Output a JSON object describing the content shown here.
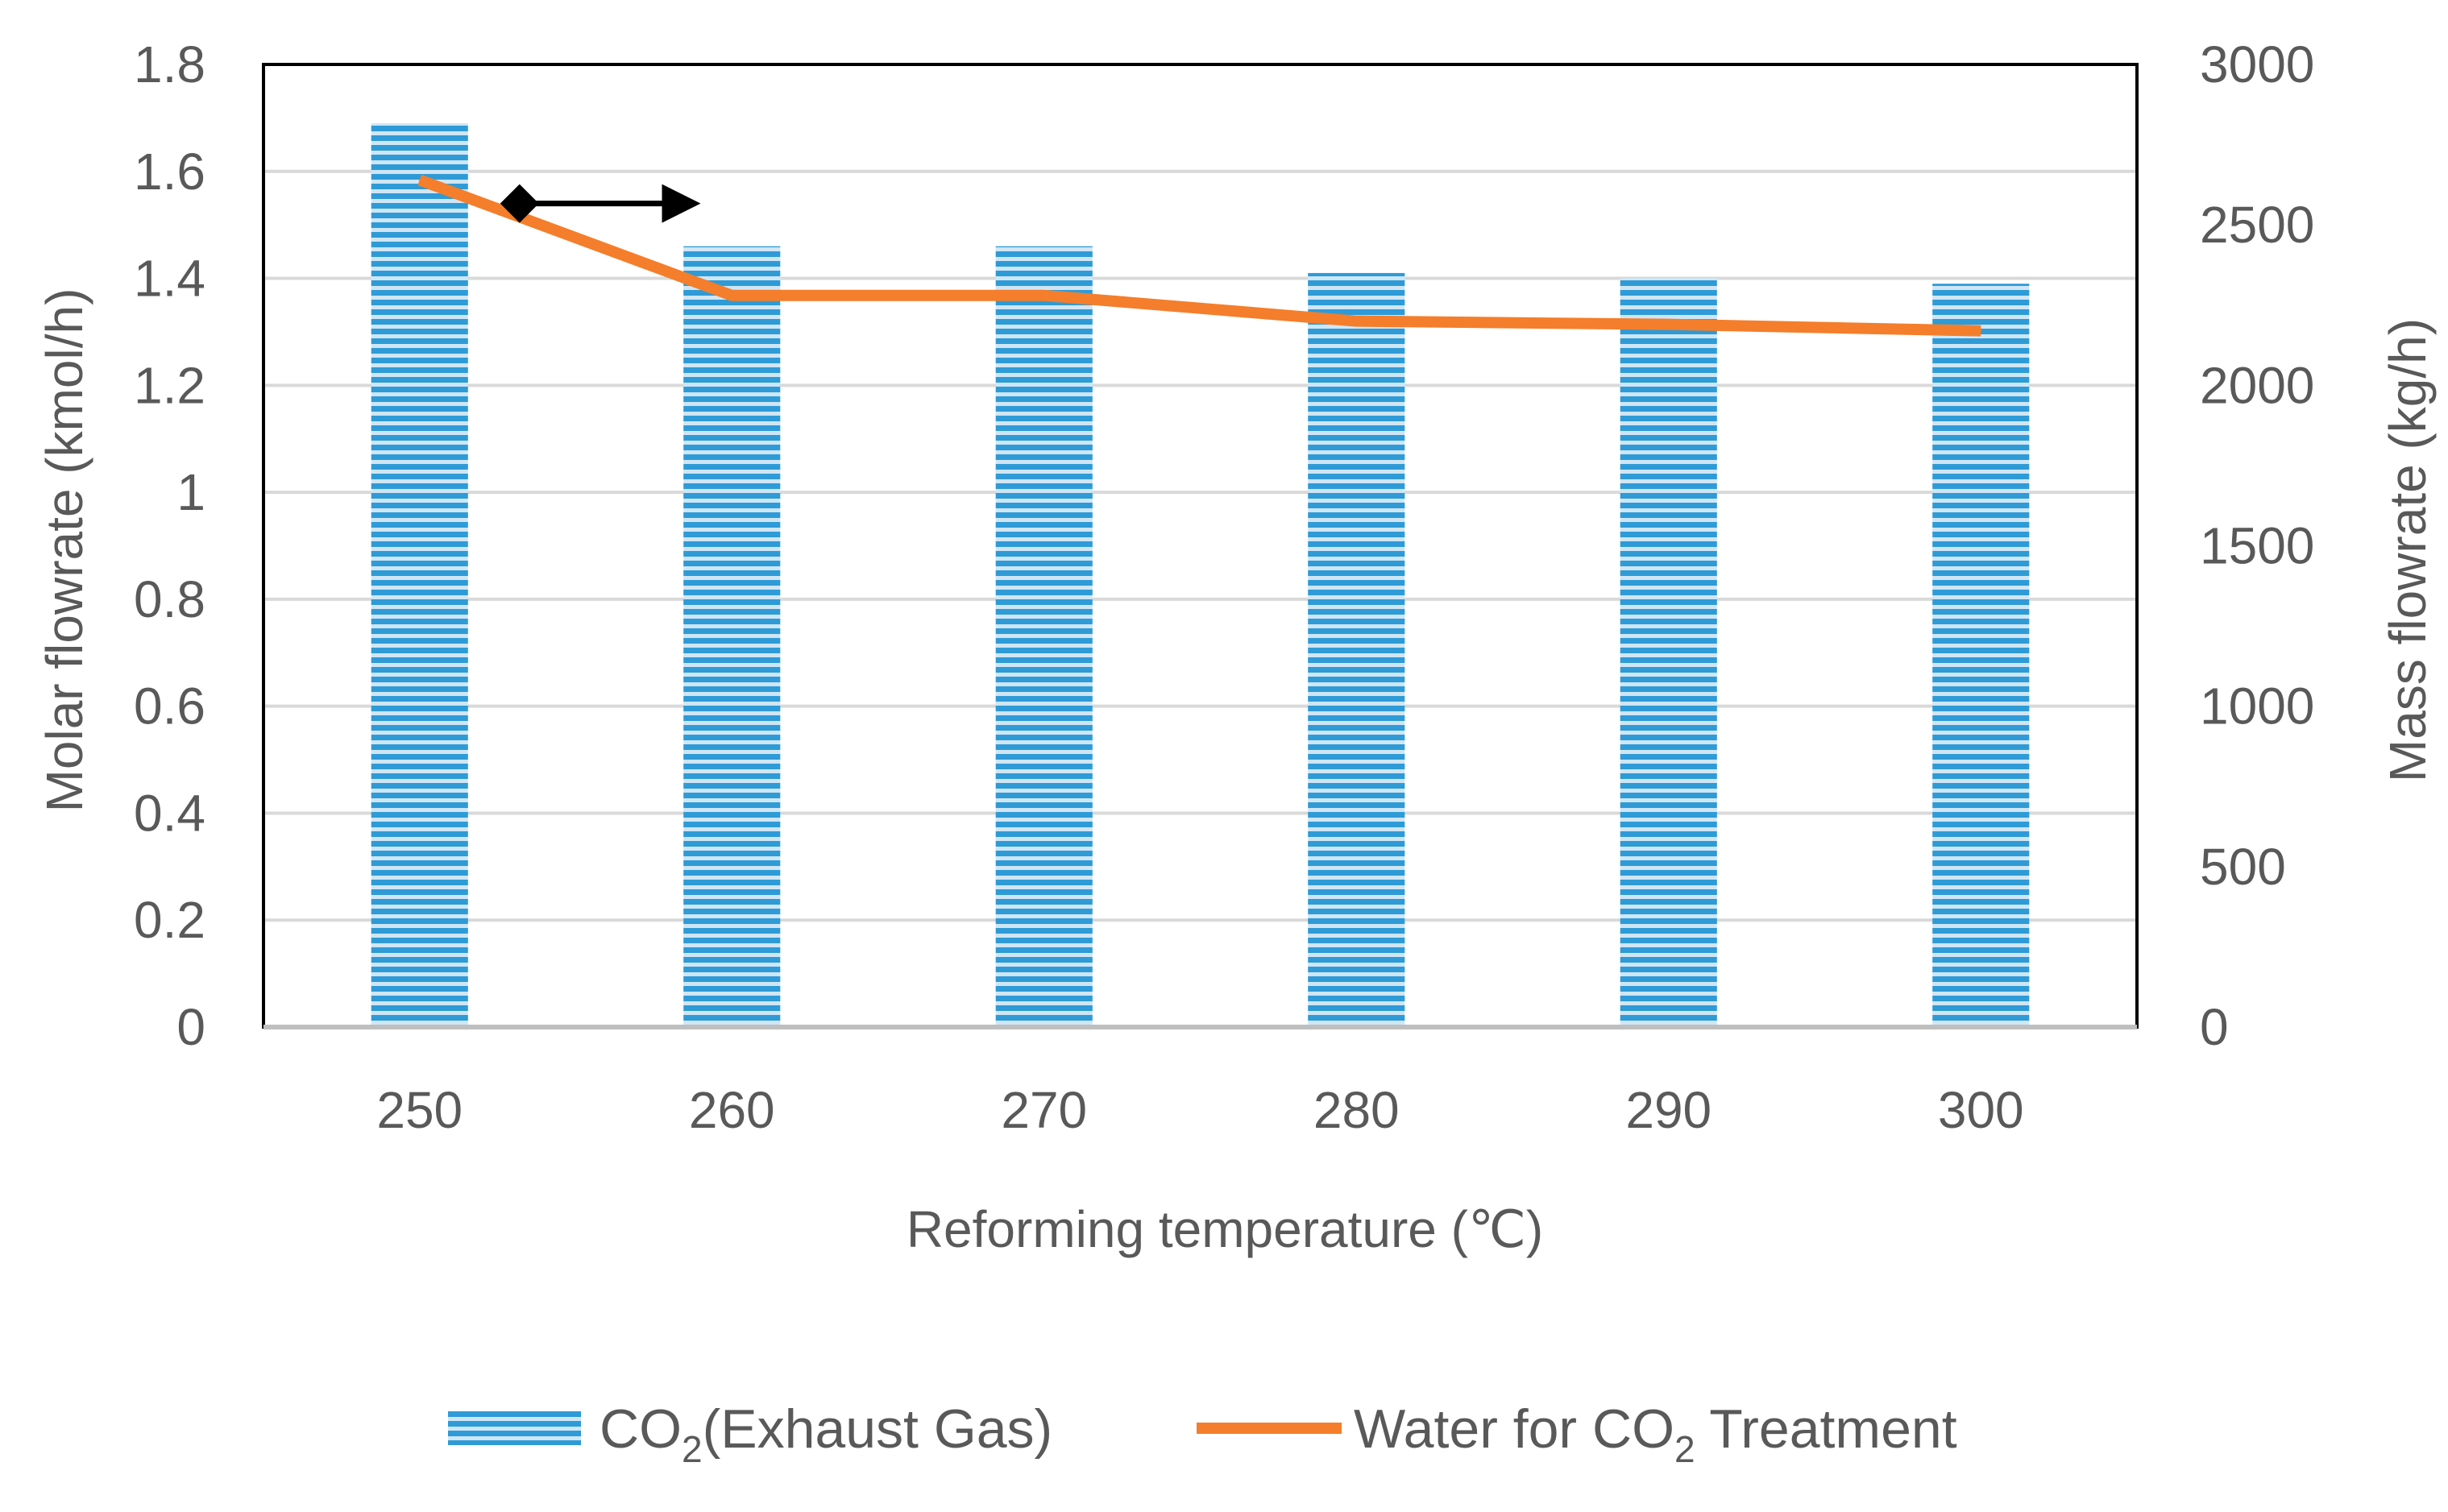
{
  "chart_data": {
    "type": "bar",
    "categories": [
      "250",
      "260",
      "270",
      "280",
      "290",
      "300"
    ],
    "xlabel": "Reforming temperature (℃)",
    "ylabel": "Molar flowrate (kmol/h)",
    "y2label": "Mass flowrate (kg/h)",
    "ylim": [
      0,
      1.8
    ],
    "y2lim": [
      0,
      3000
    ],
    "yticks": [
      "0",
      "0.2",
      "0.4",
      "0.6",
      "0.8",
      "1",
      "1.2",
      "1.4",
      "1.6",
      "1.8"
    ],
    "y2ticks": [
      "0",
      "500",
      "1000",
      "1500",
      "2000",
      "2500",
      "3000"
    ],
    "grid": true,
    "legend_position": "bottom",
    "series": [
      {
        "name_parts": [
          "CO",
          "2",
          "(Exhaust Gas)"
        ],
        "kind": "bar",
        "axis": "left",
        "color": "#2e9bd6",
        "values": [
          1.69,
          1.46,
          1.46,
          1.41,
          1.4,
          1.39
        ]
      },
      {
        "name_parts": [
          "Water for ",
          "CO",
          "2",
          " Treatment"
        ],
        "kind": "line",
        "axis": "right",
        "color": "#f47e2b",
        "values": [
          2640,
          2280,
          2280,
          2200,
          2190,
          2170
        ]
      }
    ],
    "annotation": {
      "type": "arrow",
      "color": "#000000",
      "from": {
        "x": 253.2,
        "y": 1.54
      },
      "to": {
        "x": 259,
        "y": 1.54
      }
    }
  }
}
